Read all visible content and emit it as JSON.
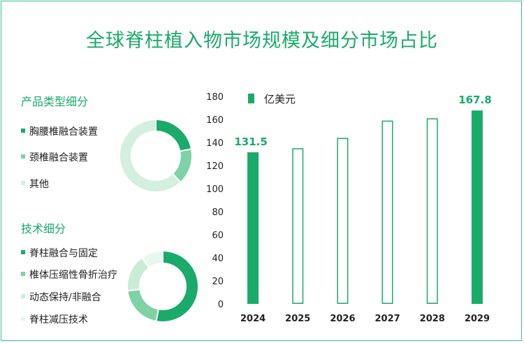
{
  "title": "全球脊柱植入物市场规模及细分市场占比",
  "colors": {
    "accent": "#1aaa6a",
    "bar": "#1aaa6a",
    "mid": "#7fd2a3",
    "light": "#c9ecd7",
    "lighter": "#e1f4e9"
  },
  "product_section": {
    "title": "产品类型细分",
    "items": [
      {
        "label": "胸腰椎融合装置",
        "color": "#1aaa6a"
      },
      {
        "label": "颈椎融合装置",
        "color": "#7fd2a3"
      },
      {
        "label": "其他",
        "color": "#d2efdf"
      }
    ],
    "shares": [
      0.22,
      0.16,
      0.62
    ]
  },
  "tech_section": {
    "title": "技术细分",
    "items": [
      {
        "label": "脊柱融合与固定",
        "color": "#1aaa6a"
      },
      {
        "label": "椎体压缩性骨折治疗",
        "color": "#7fd2a3"
      },
      {
        "label": "动态保持/非融合",
        "color": "#c9ecd7"
      },
      {
        "label": "脊柱减压技术",
        "color": "#e8f7ee"
      }
    ],
    "shares": [
      0.53,
      0.2,
      0.17,
      0.1
    ]
  },
  "chart_data": {
    "type": "bar",
    "categories": [
      "2024",
      "2025",
      "2026",
      "2027",
      "2028",
      "2029"
    ],
    "series": [
      {
        "name": "亿美元",
        "values": [
          131.5,
          135,
          144,
          159,
          161,
          167.8
        ]
      }
    ],
    "filled": [
      true,
      false,
      false,
      false,
      false,
      true
    ],
    "data_labels": [
      "131.5",
      "",
      "",
      "",
      "",
      "167.8"
    ],
    "yticks": [
      0,
      20,
      40,
      60,
      80,
      100,
      120,
      140,
      160,
      180
    ],
    "ylim": [
      0,
      180
    ],
    "grid": false,
    "legend_position": "top-left"
  }
}
